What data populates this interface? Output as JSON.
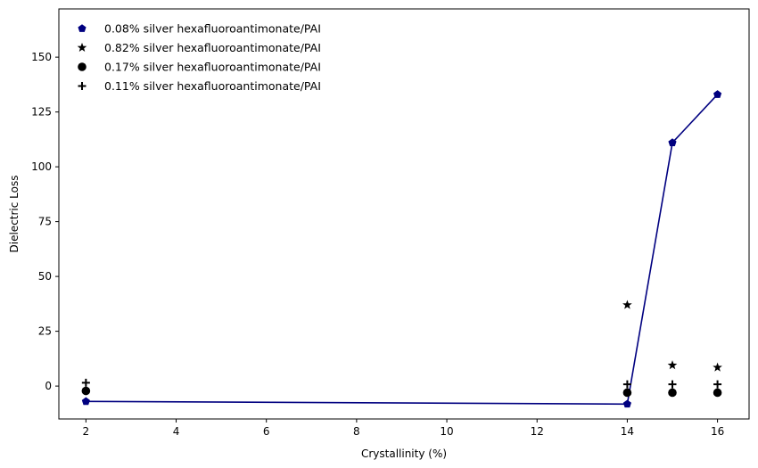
{
  "chart_data": {
    "type": "scatter",
    "xlabel": "Crystallinity (%)",
    "ylabel": "Dielectric Loss",
    "xlim": [
      1.4,
      16.7
    ],
    "ylim": [
      -15,
      172
    ],
    "xticks": [
      2,
      4,
      6,
      8,
      10,
      12,
      14,
      16
    ],
    "yticks": [
      0,
      25,
      50,
      75,
      100,
      125,
      150
    ],
    "grid": false,
    "legend_position": "top-left",
    "series": [
      {
        "name": "0.08% silver hexafluoroantimonate/PAI",
        "marker": "pentagon",
        "color": "#000080",
        "line": true,
        "x": [
          2,
          14,
          15,
          16
        ],
        "y": [
          -7,
          -8.2,
          111,
          133
        ]
      },
      {
        "name": "0.82% silver hexafluoroantimonate/PAI",
        "marker": "star",
        "color": "#000000",
        "line": false,
        "x": [
          14,
          15,
          16
        ],
        "y": [
          37,
          9.5,
          8.5
        ]
      },
      {
        "name": "0.17% silver hexafluoroantimonate/PAI",
        "marker": "circle",
        "color": "#000000",
        "line": false,
        "x": [
          2,
          14,
          15,
          16
        ],
        "y": [
          -2.2,
          -3,
          -3,
          -3
        ]
      },
      {
        "name": "0.11% silver hexafluoroantimonate/PAI",
        "marker": "plus",
        "color": "#000000",
        "line": false,
        "x": [
          2,
          14,
          15,
          16
        ],
        "y": [
          1.5,
          0.8,
          0.8,
          0.8
        ]
      }
    ]
  }
}
